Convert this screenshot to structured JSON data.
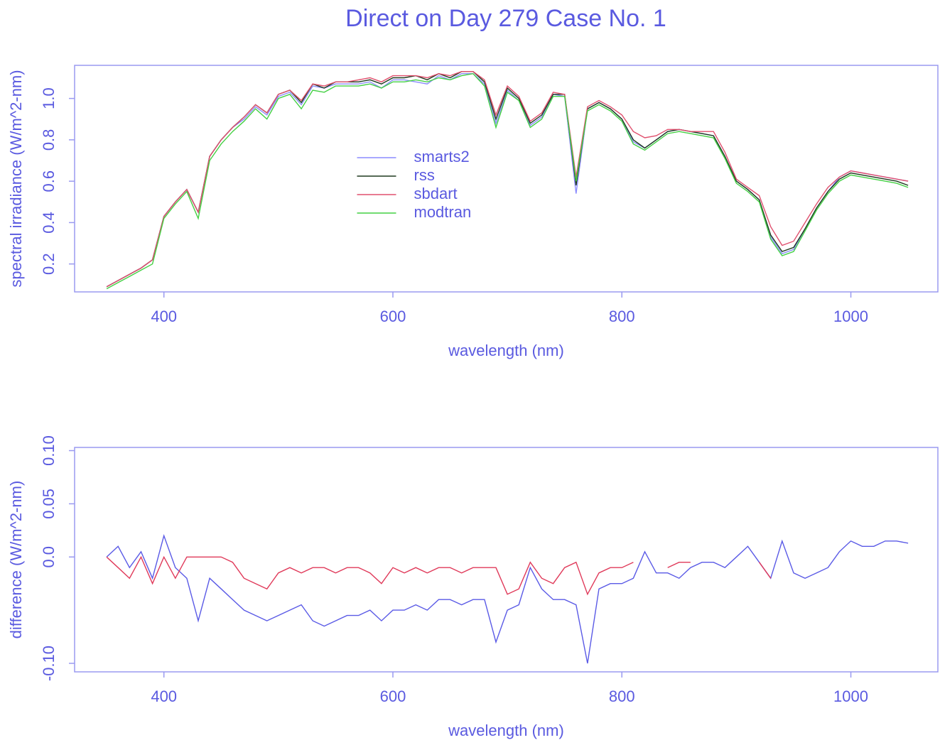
{
  "chart_data": [
    {
      "type": "line",
      "title": "Direct on Day 279 Case No. 1",
      "xlabel": "wavelength (nm)",
      "ylabel": "spectral irradiance (W/m^2-nm)",
      "x": [
        350,
        360,
        370,
        380,
        390,
        400,
        410,
        420,
        430,
        440,
        450,
        460,
        470,
        480,
        490,
        500,
        510,
        520,
        530,
        540,
        550,
        560,
        570,
        580,
        590,
        600,
        610,
        620,
        630,
        640,
        650,
        660,
        670,
        680,
        690,
        700,
        710,
        720,
        730,
        740,
        750,
        760,
        770,
        780,
        790,
        800,
        810,
        820,
        830,
        840,
        850,
        860,
        870,
        880,
        890,
        900,
        910,
        920,
        930,
        940,
        950,
        960,
        970,
        980,
        990,
        1000,
        1010,
        1020,
        1030,
        1040,
        1050
      ],
      "series": [
        {
          "name": "smarts2",
          "color": "#8c8cff",
          "values": [
            0.09,
            0.12,
            0.15,
            0.18,
            0.22,
            0.43,
            0.5,
            0.56,
            0.45,
            0.72,
            0.8,
            0.86,
            0.9,
            0.96,
            0.92,
            1.01,
            1.03,
            0.97,
            1.06,
            1.05,
            1.07,
            1.07,
            1.07,
            1.08,
            1.05,
            1.09,
            1.09,
            1.08,
            1.07,
            1.11,
            1.09,
            1.12,
            1.12,
            1.07,
            0.88,
            1.04,
            0.99,
            0.87,
            0.91,
            1.02,
            1.01,
            0.54,
            0.95,
            0.98,
            0.95,
            0.9,
            0.79,
            0.76,
            0.8,
            0.84,
            0.85,
            0.84,
            0.83,
            0.82,
            0.72,
            0.6,
            0.56,
            0.51,
            0.33,
            0.25,
            0.27,
            0.37,
            0.47,
            0.55,
            0.62,
            0.65,
            0.64,
            0.63,
            0.62,
            0.61,
            0.6
          ]
        },
        {
          "name": "rss",
          "color": "#1e3a1e",
          "values": [
            0.09,
            0.12,
            0.15,
            0.18,
            0.22,
            0.43,
            0.5,
            0.56,
            0.45,
            0.72,
            0.8,
            0.86,
            0.91,
            0.97,
            0.93,
            1.02,
            1.04,
            0.98,
            1.07,
            1.05,
            1.08,
            1.08,
            1.08,
            1.09,
            1.07,
            1.1,
            1.1,
            1.11,
            1.09,
            1.12,
            1.1,
            1.13,
            1.13,
            1.08,
            0.9,
            1.05,
            1.0,
            0.88,
            0.92,
            1.02,
            1.02,
            0.58,
            0.95,
            0.98,
            0.95,
            0.9,
            0.8,
            0.76,
            0.8,
            0.84,
            0.85,
            0.84,
            0.83,
            0.82,
            0.72,
            0.6,
            0.56,
            0.51,
            0.34,
            0.26,
            0.28,
            0.37,
            0.47,
            0.55,
            0.61,
            0.64,
            0.63,
            0.62,
            0.61,
            0.6,
            0.58
          ]
        },
        {
          "name": "sbdart",
          "color": "#e0506e",
          "values": [
            0.09,
            0.12,
            0.15,
            0.18,
            0.22,
            0.43,
            0.5,
            0.56,
            0.45,
            0.72,
            0.8,
            0.86,
            0.91,
            0.97,
            0.93,
            1.02,
            1.04,
            0.99,
            1.07,
            1.06,
            1.08,
            1.08,
            1.09,
            1.1,
            1.08,
            1.11,
            1.11,
            1.11,
            1.1,
            1.12,
            1.11,
            1.13,
            1.13,
            1.09,
            0.92,
            1.06,
            1.01,
            0.89,
            0.93,
            1.03,
            1.02,
            0.62,
            0.96,
            0.99,
            0.96,
            0.92,
            0.84,
            0.81,
            0.82,
            0.85,
            0.85,
            0.84,
            0.84,
            0.84,
            0.74,
            0.61,
            0.57,
            0.53,
            0.38,
            0.29,
            0.31,
            0.4,
            0.49,
            0.57,
            0.62,
            0.65,
            0.64,
            0.63,
            0.62,
            0.61,
            0.6
          ]
        },
        {
          "name": "modtran",
          "color": "#44d044",
          "values": [
            0.08,
            0.11,
            0.14,
            0.17,
            0.2,
            0.42,
            0.49,
            0.55,
            0.42,
            0.7,
            0.78,
            0.84,
            0.89,
            0.95,
            0.9,
            1.0,
            1.02,
            0.95,
            1.04,
            1.03,
            1.06,
            1.06,
            1.06,
            1.07,
            1.05,
            1.08,
            1.08,
            1.09,
            1.08,
            1.1,
            1.09,
            1.11,
            1.12,
            1.06,
            0.86,
            1.03,
            0.99,
            0.86,
            0.9,
            1.01,
            1.01,
            0.6,
            0.94,
            0.97,
            0.94,
            0.89,
            0.78,
            0.75,
            0.79,
            0.83,
            0.84,
            0.83,
            0.82,
            0.81,
            0.71,
            0.59,
            0.55,
            0.5,
            0.32,
            0.24,
            0.26,
            0.36,
            0.46,
            0.54,
            0.6,
            0.63,
            0.62,
            0.61,
            0.6,
            0.59,
            0.57
          ]
        }
      ],
      "xlim": [
        322,
        1076
      ],
      "xticks": [
        400,
        600,
        800,
        1000
      ],
      "ylim": [
        0.065,
        1.16
      ],
      "yticks": [
        0.2,
        0.4,
        0.6,
        0.8,
        {
          "value": 1,
          "label": "1.0"
        }
      ],
      "legend": "center"
    },
    {
      "type": "line",
      "xlabel": "wavelength (nm)",
      "ylabel": "difference (W/m^2-nm)",
      "x": [
        350,
        360,
        370,
        380,
        390,
        400,
        410,
        420,
        430,
        440,
        450,
        460,
        470,
        480,
        490,
        500,
        510,
        520,
        530,
        540,
        550,
        560,
        570,
        580,
        590,
        600,
        610,
        620,
        630,
        640,
        650,
        660,
        670,
        680,
        690,
        700,
        710,
        720,
        730,
        740,
        750,
        760,
        770,
        780,
        790,
        800,
        810,
        820,
        830,
        840,
        850,
        860,
        870,
        880,
        890,
        900,
        910,
        920,
        930,
        940,
        950,
        960,
        970,
        980,
        990,
        1000,
        1010,
        1020,
        1030,
        1040,
        1050
      ],
      "series": [
        {
          "color": "#5a5ae6",
          "values": [
            0.0,
            0.01,
            -0.01,
            0.005,
            -0.02,
            0.02,
            -0.01,
            -0.02,
            -0.06,
            -0.02,
            -0.03,
            -0.04,
            -0.05,
            -0.055,
            -0.06,
            -0.055,
            -0.05,
            -0.045,
            -0.06,
            -0.065,
            -0.06,
            -0.055,
            -0.055,
            -0.05,
            -0.06,
            -0.05,
            -0.05,
            -0.045,
            -0.05,
            -0.04,
            -0.04,
            -0.045,
            -0.04,
            -0.04,
            -0.08,
            -0.05,
            -0.045,
            -0.01,
            -0.03,
            -0.04,
            -0.04,
            -0.045,
            -0.1,
            -0.03,
            -0.025,
            -0.025,
            -0.02,
            0.005,
            -0.015,
            -0.015,
            -0.02,
            -0.01,
            -0.005,
            -0.005,
            -0.01,
            0.0,
            0.01,
            -0.005,
            -0.02,
            0.015,
            -0.015,
            -0.02,
            -0.015,
            -0.01,
            0.005,
            0.015,
            0.01,
            0.01,
            0.015,
            0.015,
            0.013
          ]
        },
        {
          "color": "#e03a5a",
          "values": [
            0.0,
            -0.01,
            -0.02,
            0.0,
            -0.025,
            0.0,
            -0.02,
            0.0,
            0.0,
            0.0,
            0.0,
            -0.005,
            -0.02,
            -0.025,
            -0.03,
            -0.015,
            -0.01,
            -0.015,
            -0.01,
            -0.01,
            -0.015,
            -0.01,
            -0.01,
            -0.015,
            -0.025,
            -0.01,
            -0.015,
            -0.01,
            -0.015,
            -0.01,
            -0.01,
            -0.015,
            -0.01,
            -0.01,
            -0.01,
            -0.035,
            -0.03,
            -0.005,
            -0.02,
            -0.025,
            -0.01,
            -0.005,
            -0.035,
            -0.015,
            -0.01,
            -0.01,
            -0.005,
            null,
            null,
            -0.01,
            -0.005,
            -0.005,
            null,
            null,
            null,
            null,
            null,
            -0.005,
            -0.02,
            null,
            null,
            null,
            null,
            null,
            null,
            null,
            null,
            null,
            null,
            null,
            null
          ]
        }
      ],
      "xlim": [
        322,
        1076
      ],
      "xticks": [
        400,
        600,
        800,
        1000
      ],
      "ylim": [
        -0.108,
        0.103
      ],
      "yticks": [
        {
          "value": -0.1,
          "label": "-0.10"
        },
        {
          "value": 0,
          "label": "0.0"
        },
        0.05,
        {
          "value": 0.1,
          "label": "0.10"
        }
      ]
    }
  ]
}
